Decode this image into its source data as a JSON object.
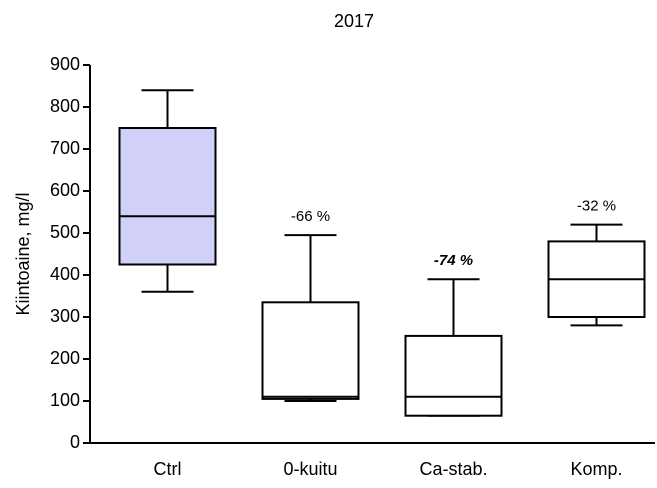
{
  "chart_data": {
    "type": "box",
    "title": "2017",
    "y_label": "Kiintoaine, mg/l",
    "categories": [
      "Ctrl",
      "0-kuitu",
      "Ca-stab.",
      "Komp."
    ],
    "boxes": [
      {
        "min": 360,
        "q1": 425,
        "median": 540,
        "q3": 750,
        "max": 840
      },
      {
        "min": 100,
        "q1": 105,
        "median": 110,
        "q3": 335,
        "max": 495
      },
      {
        "min": 65,
        "q1": 65,
        "median": 110,
        "q3": 255,
        "max": 390
      },
      {
        "min": 280,
        "q1": 300,
        "median": 390,
        "q3": 480,
        "max": 520
      }
    ],
    "colors": [
      "#d0d0f8",
      "#ffffff",
      "#ffffff",
      "#ffffff"
    ],
    "annotations": [
      null,
      "-66 %",
      "-74 %",
      "-32 %"
    ],
    "ylim": [
      0,
      900
    ],
    "yticks": [
      0,
      100,
      200,
      300,
      400,
      500,
      600,
      700,
      800,
      900
    ]
  }
}
